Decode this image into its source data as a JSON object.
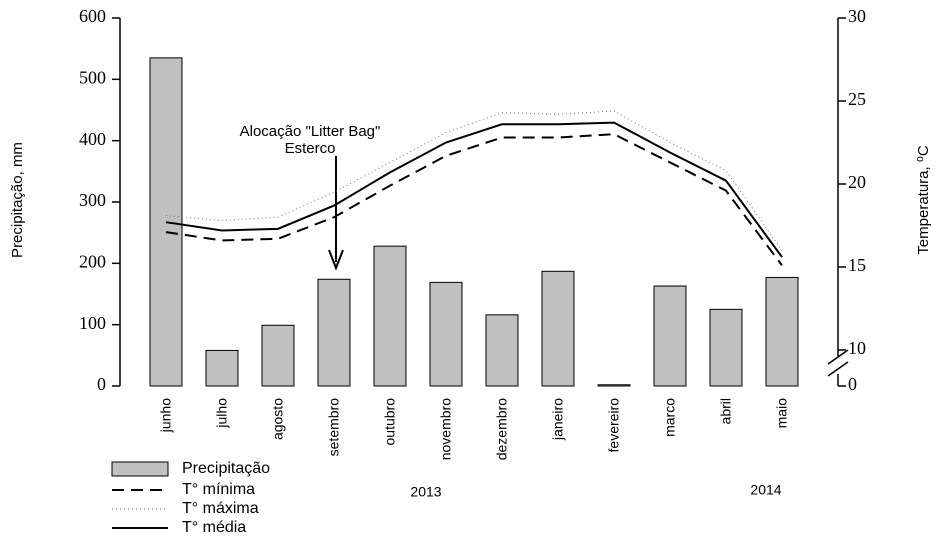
{
  "chart_data": {
    "type": "bar",
    "y_label": "Precipitação, mm",
    "y2_label": "Temperatura, ⁰C",
    "annotation": [
      "Alocação \"Litter Bag\"",
      "Esterco"
    ],
    "year_labels": [
      "2013",
      "2014"
    ],
    "categories": [
      "junho",
      "julho",
      "agosto",
      "setembro",
      "outubro",
      "novembro",
      "dezembro",
      "janeiro",
      "fevereiro",
      "marco",
      "abril",
      "maio"
    ],
    "series": [
      {
        "name": "Precipitação",
        "type": "bar",
        "color": "#c0c0c0",
        "values": [
          535,
          58,
          99,
          174,
          228,
          169,
          116,
          187,
          2,
          163,
          125,
          177
        ]
      },
      {
        "name": "T° mínima",
        "type": "line",
        "axis": "y2",
        "color": "#000000",
        "linestyle": "dashed",
        "values": [
          17.1,
          16.6,
          16.7,
          18.0,
          19.9,
          21.7,
          22.8,
          22.8,
          23.0,
          21.3,
          19.6,
          15.1
        ]
      },
      {
        "name": "T° máxima",
        "type": "line",
        "axis": "y2",
        "color": "#777777",
        "linestyle": "dotted",
        "values": [
          18.1,
          17.8,
          18.0,
          19.5,
          21.3,
          23.1,
          24.3,
          24.2,
          24.4,
          22.5,
          20.8,
          16.0
        ]
      },
      {
        "name": "T° média",
        "type": "line",
        "axis": "y2",
        "color": "#000000",
        "linestyle": "solid",
        "values": [
          17.7,
          17.2,
          17.3,
          18.7,
          20.7,
          22.5,
          23.6,
          23.6,
          23.7,
          21.9,
          20.2,
          15.6
        ]
      }
    ],
    "ylim": [
      0,
      600
    ],
    "yticks": [
      0,
      100,
      200,
      300,
      400,
      500,
      600
    ],
    "y2lim": [
      10,
      30
    ],
    "y2ticks": [
      0,
      10,
      15,
      20,
      25,
      30
    ],
    "y2_axis_break": true,
    "legend": "bottom-left"
  }
}
